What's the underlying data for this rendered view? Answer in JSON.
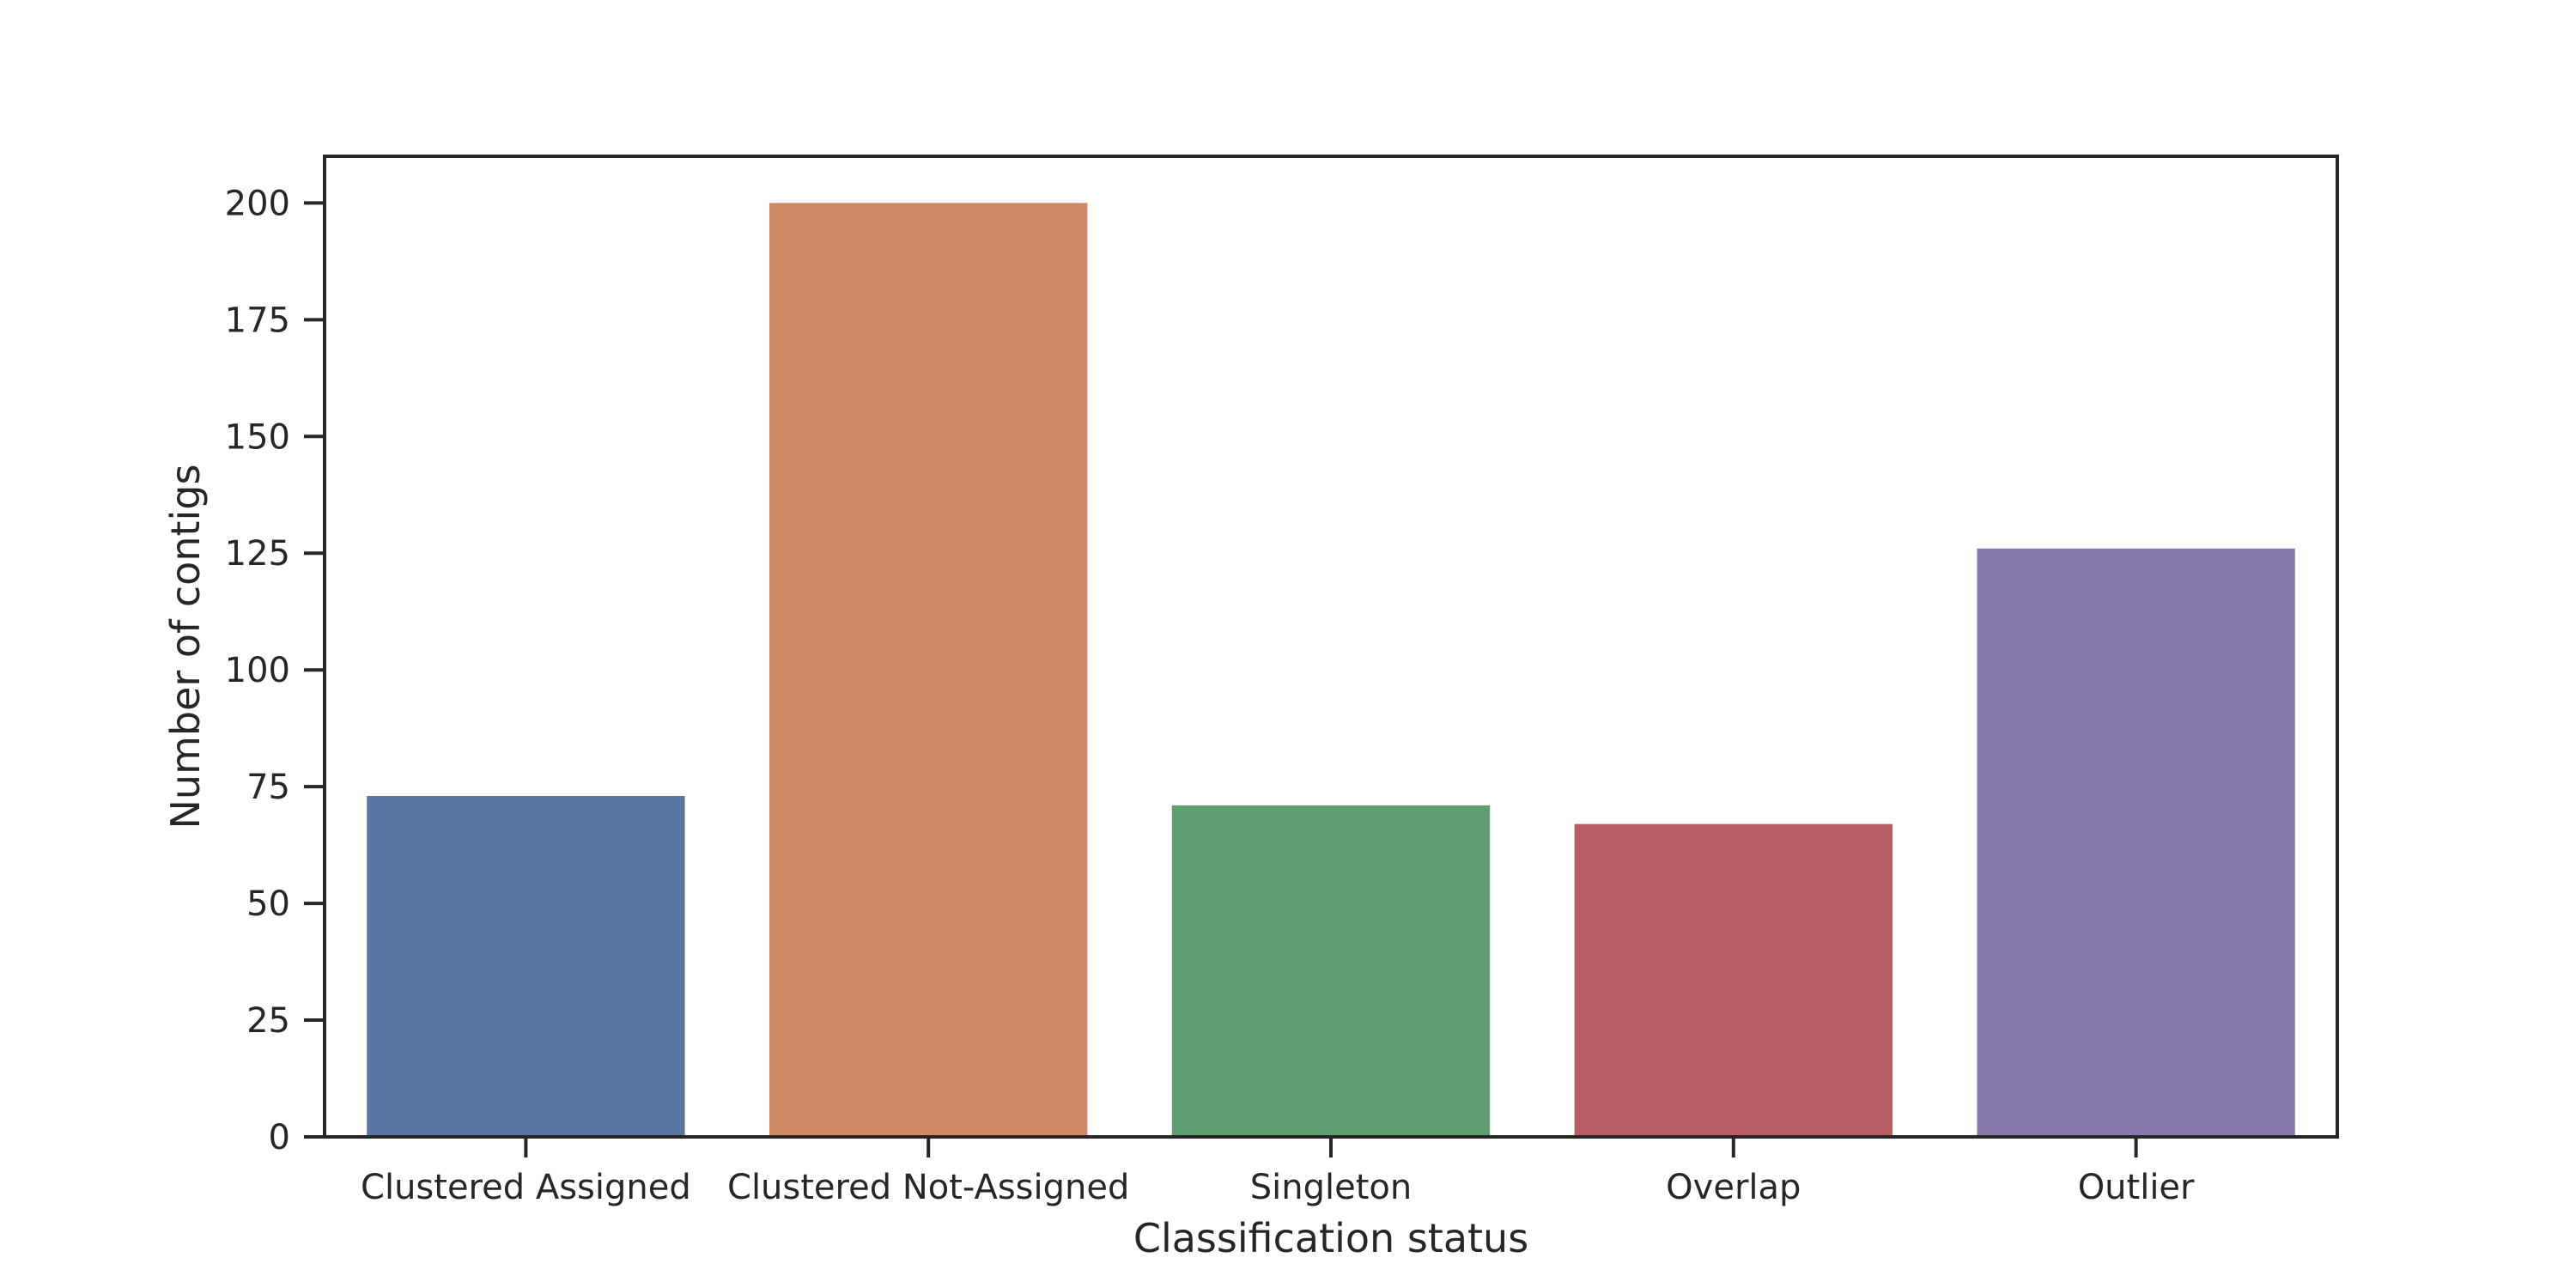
{
  "chart_data": {
    "type": "bar",
    "title": "",
    "xlabel": "Classification status",
    "ylabel": "Number of contigs",
    "categories": [
      "Clustered Assigned",
      "Clustered Not-Assigned",
      "Singleton",
      "Overlap",
      "Outlier"
    ],
    "values": [
      73,
      200,
      71,
      67,
      126
    ],
    "colors": [
      "#5975a4",
      "#cc8963",
      "#5f9e6e",
      "#b55d60",
      "#857aab"
    ],
    "ylim": [
      0,
      210
    ],
    "yticks": [
      0,
      25,
      50,
      75,
      100,
      125,
      150,
      175,
      200
    ],
    "grid": false,
    "legend": "none"
  }
}
